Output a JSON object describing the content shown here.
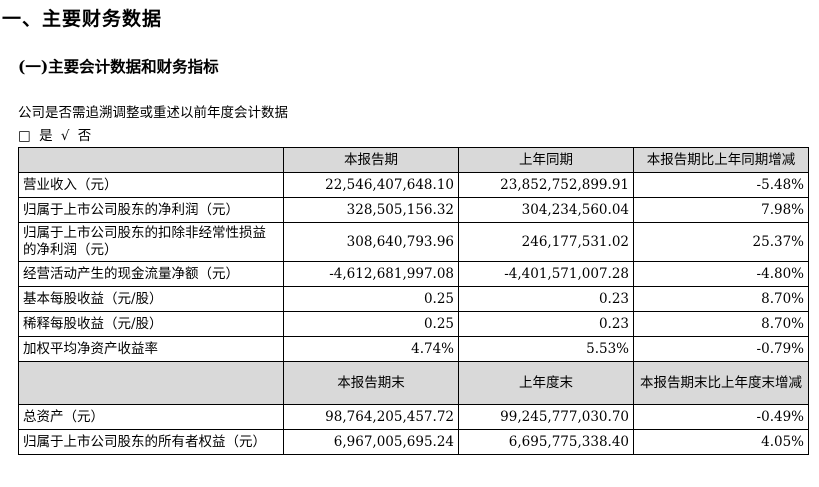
{
  "section_title": "一、主要财务数据",
  "subsection_title": "(一)主要会计数据和财务指标",
  "restatement_question": "公司是否需追溯调整或重述以前年度会计数据",
  "restatement_choice": {
    "yes_box": "□",
    "yes_label": "是",
    "no_mark": "√",
    "no_label": "否"
  },
  "table1": {
    "headers": [
      "",
      "本报告期",
      "上年同期",
      "本报告期比上年同期增减"
    ],
    "rows": [
      [
        "营业收入（元）",
        "22,546,407,648.10",
        "23,852,752,899.91",
        "-5.48%"
      ],
      [
        "归属于上市公司股东的净利润（元）",
        "328,505,156.32",
        "304,234,560.04",
        "7.98%"
      ],
      [
        "归属于上市公司股东的扣除非经常性损益的净利润（元）",
        "308,640,793.96",
        "246,177,531.02",
        "25.37%"
      ],
      [
        "经营活动产生的现金流量净额（元）",
        "-4,612,681,997.08",
        "-4,401,571,007.28",
        "-4.80%"
      ],
      [
        "基本每股收益（元/股）",
        "0.25",
        "0.23",
        "8.70%"
      ],
      [
        "稀释每股收益（元/股）",
        "0.25",
        "0.23",
        "8.70%"
      ],
      [
        "加权平均净资产收益率",
        "4.74%",
        "5.53%",
        "-0.79%"
      ]
    ]
  },
  "table2": {
    "headers": [
      "",
      "本报告期末",
      "上年度末",
      "本报告期末比上年度末增减"
    ],
    "rows": [
      [
        "总资产（元）",
        "98,764,205,457.72",
        "99,245,777,030.70",
        "-0.49%"
      ],
      [
        "归属于上市公司股东的所有者权益（元）",
        "6,967,005,695.24",
        "6,695,775,338.40",
        "4.05%"
      ]
    ]
  }
}
